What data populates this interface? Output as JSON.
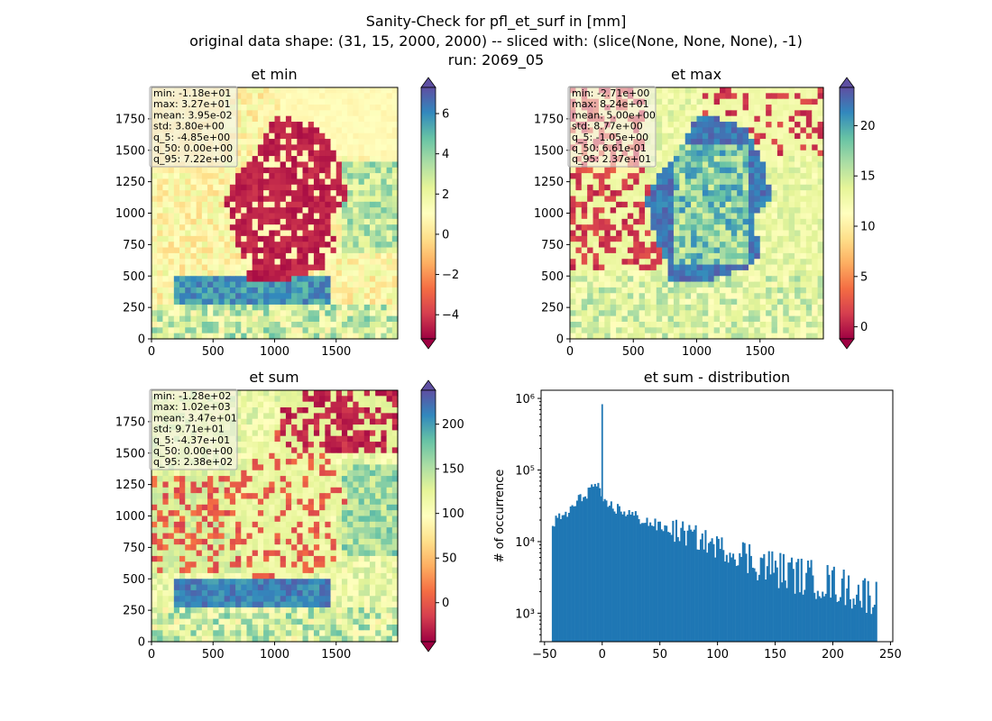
{
  "figure": {
    "suptitle_lines": [
      "Sanity-Check for pfl_et_surf in [mm]",
      "original data shape: (31, 15, 2000, 2000) -- sliced with: (slice(None, None, None), -1)",
      "run: 2069_05"
    ]
  },
  "colors": {
    "spectral_stops": [
      "#9e0142",
      "#d53e4f",
      "#f46d43",
      "#fdae61",
      "#fee08b",
      "#ffffbf",
      "#e6f598",
      "#abdda4",
      "#66c2a5",
      "#3288bd",
      "#5e4fa2"
    ],
    "hist_bar": "#1f77b4",
    "stats_box_bg": "#f0f0f0",
    "stats_box_border": "#aaaaaa"
  },
  "chart_data": [
    {
      "type": "heatmap",
      "title": "et min",
      "colormap": "Spectral",
      "colorbar_extend": "both",
      "xlim": [
        0,
        2000
      ],
      "ylim": [
        0,
        2000
      ],
      "xticks": [
        "0",
        "500",
        "1000",
        "1500"
      ],
      "yticks": [
        "0",
        "250",
        "500",
        "750",
        "1000",
        "1250",
        "1500",
        "1750"
      ],
      "clim": [
        -5.2,
        7.3
      ],
      "colorbar_ticks": [
        "-4",
        "-2",
        "0",
        "2",
        "4",
        "6"
      ],
      "stats": [
        "min: -1.18e+01",
        "max: 3.27e+01",
        "mean: 3.95e-02",
        "std: 3.80e+00",
        "q_5: -4.85e+00",
        "q_50: 0.00e+00",
        "q_95: 7.22e+00"
      ]
    },
    {
      "type": "heatmap",
      "title": "et max",
      "colormap": "Spectral",
      "colorbar_extend": "both",
      "xlim": [
        0,
        2000
      ],
      "ylim": [
        0,
        2000
      ],
      "xticks": [
        "0",
        "500",
        "1000",
        "1500"
      ],
      "yticks": [
        "0",
        "250",
        "500",
        "750",
        "1000",
        "1250",
        "1500",
        "1750"
      ],
      "clim": [
        -1.2,
        23.8
      ],
      "colorbar_ticks": [
        "0",
        "5",
        "10",
        "15",
        "20"
      ],
      "stats": [
        "min: -2.71e+00",
        "max: 8.24e+01",
        "mean: 5.00e+00",
        "std: 8.77e+00",
        "q_5: -1.05e+00",
        "q_50: 6.61e-01",
        "q_95: 2.37e+01"
      ]
    },
    {
      "type": "heatmap",
      "title": "et sum",
      "colormap": "Spectral",
      "colorbar_extend": "both",
      "xlim": [
        0,
        2000
      ],
      "ylim": [
        0,
        2000
      ],
      "xticks": [
        "0",
        "500",
        "1000",
        "1500"
      ],
      "yticks": [
        "0",
        "250",
        "500",
        "750",
        "1000",
        "1250",
        "1500",
        "1750"
      ],
      "clim": [
        -43.7,
        238
      ],
      "colorbar_ticks": [
        "0",
        "50",
        "100",
        "150",
        "200"
      ],
      "stats": [
        "min: -1.28e+02",
        "max: 1.02e+03",
        "mean: 3.47e+01",
        "std: 9.71e+01",
        "q_5: -4.37e+01",
        "q_50: 0.00e+00",
        "q_95: 2.38e+02"
      ]
    },
    {
      "type": "bar",
      "title": "et sum - distribution",
      "ylabel": "# of occurrence",
      "xlabel": "",
      "yscale": "log",
      "xlim": [
        -53,
        252
      ],
      "ylim": [
        400,
        1300000
      ],
      "xticks": [
        -50,
        0,
        50,
        100,
        150,
        200,
        250
      ],
      "yticks": [
        {
          "value": 1000,
          "label": "10³"
        },
        {
          "value": 10000,
          "label": "10⁴"
        },
        {
          "value": 100000,
          "label": "10⁵"
        },
        {
          "value": 1000000,
          "label": "10⁶"
        }
      ],
      "bin_start": -43.7,
      "bin_width": 1.41,
      "spike": {
        "x": -0.7,
        "value": 830000
      },
      "series": [
        {
          "x": [
            -43,
            -30,
            -20,
            -10,
            -5,
            -2,
            0,
            5,
            10,
            20,
            30,
            50,
            75,
            100,
            125,
            150,
            175,
            200,
            220,
            238
          ],
          "values": [
            18000,
            25000,
            38000,
            55000,
            65000,
            45000,
            32000,
            33000,
            30000,
            26000,
            22000,
            16000,
            12500,
            8500,
            6000,
            4200,
            3200,
            2600,
            2000,
            1700
          ]
        }
      ]
    }
  ]
}
